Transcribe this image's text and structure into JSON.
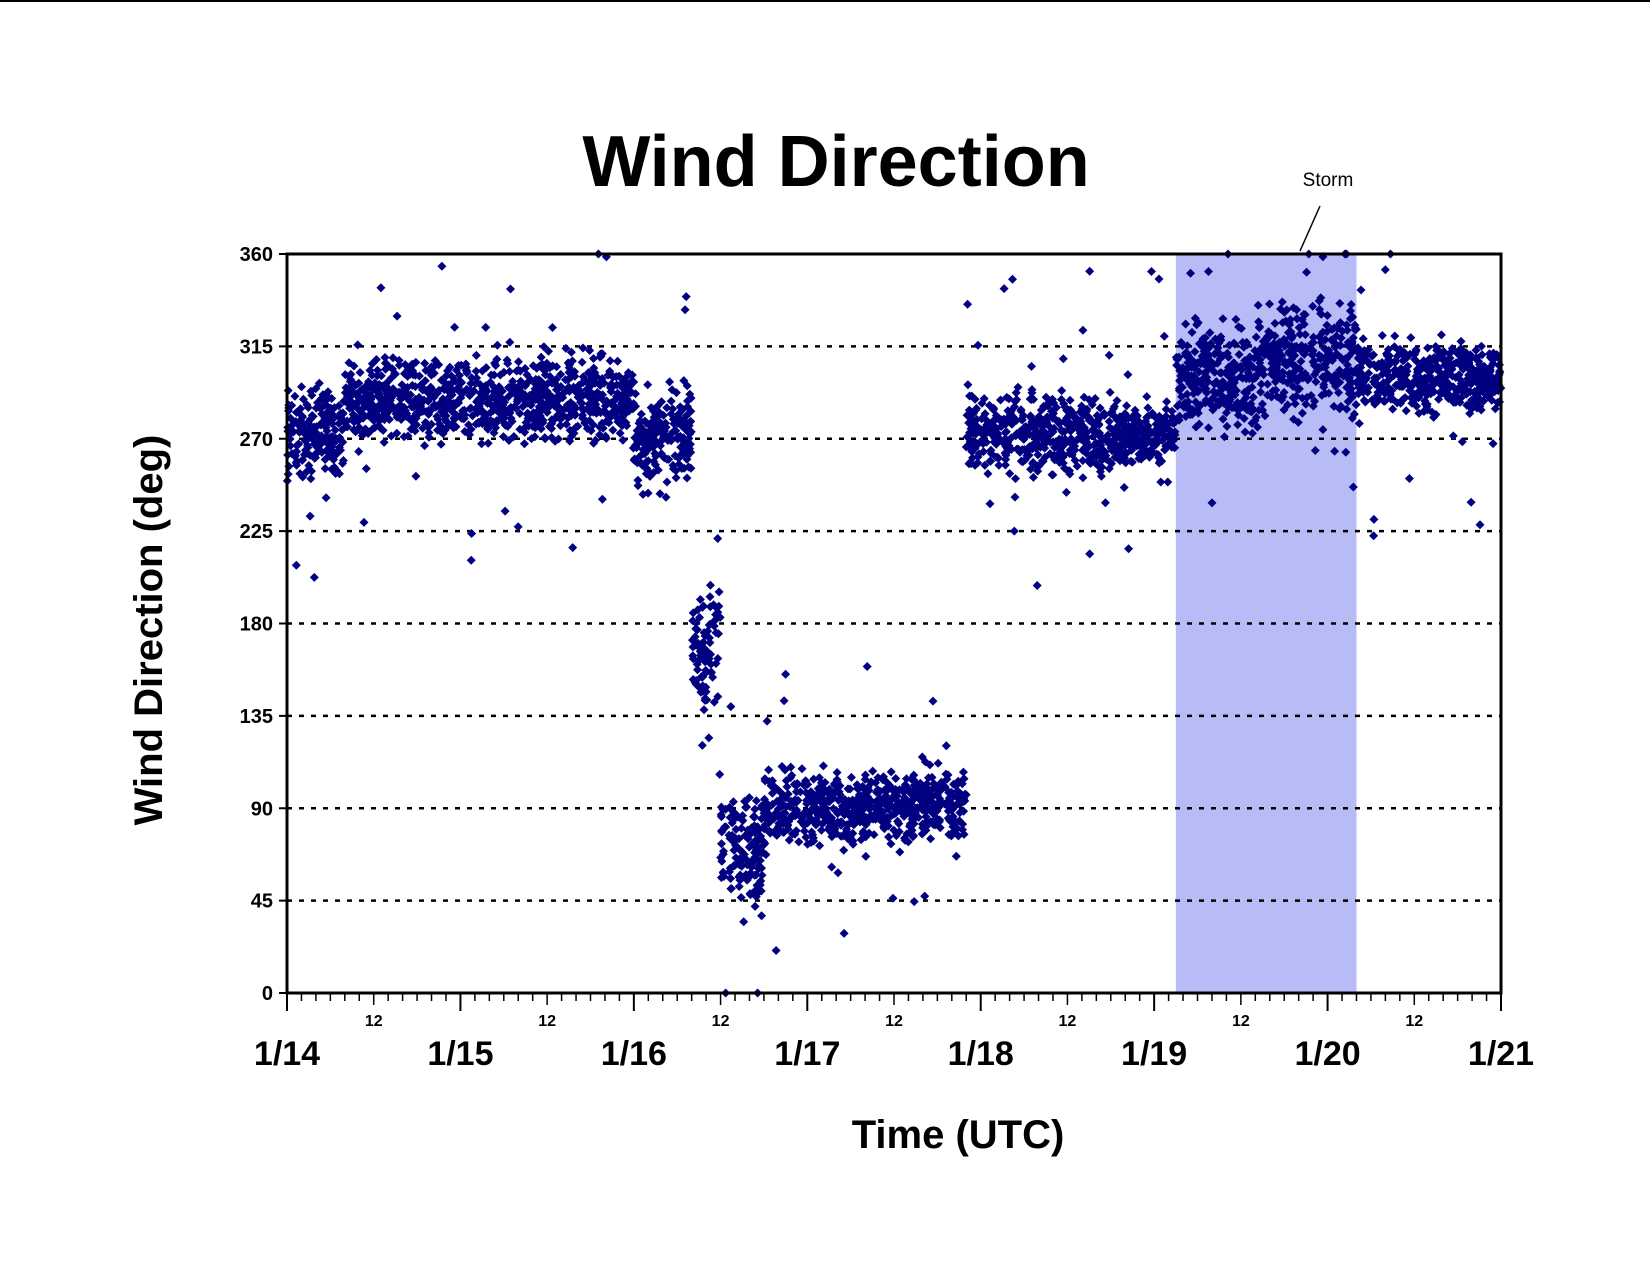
{
  "chart_data": {
    "type": "scatter",
    "title": "Wind Direction",
    "xlabel": "Time (UTC)",
    "ylabel": "Wind Direction (deg)",
    "xlim": [
      "1/14",
      "1/21"
    ],
    "ylim": [
      0,
      360
    ],
    "yticks": [
      "0",
      "45",
      "90",
      "135",
      "180",
      "225",
      "270",
      "315",
      "360"
    ],
    "xmajor_ticks": [
      "1/14",
      "1/15",
      "1/16",
      "1/17",
      "1/18",
      "1/19",
      "1/20",
      "1/21"
    ],
    "xminor_tick_label": "12",
    "grid": "horizontal dotted",
    "marker": "diamond",
    "marker_color": "#000080",
    "highlight": {
      "label": "Storm",
      "start": "1/19 03:00",
      "end": "1/20 04:00",
      "color": "#b8bcf6"
    },
    "series": [
      {
        "description_free": true,
        "points_by_period": [
          {
            "start": "1/14 00:00",
            "end": "1/14 08:00",
            "y_center": 272,
            "y_spread": 28
          },
          {
            "start": "1/14 08:00",
            "end": "1/15 06:00",
            "y_center": 288,
            "y_spread": 28
          },
          {
            "start": "1/15 06:00",
            "end": "1/16 00:00",
            "y_center": 290,
            "y_spread": 30
          },
          {
            "start": "1/16 00:00",
            "end": "1/16 08:00",
            "y_center": 270,
            "y_spread": 35
          },
          {
            "start": "1/16 08:00",
            "end": "1/16 12:00",
            "y_center": 170,
            "y_spread": 40
          },
          {
            "start": "1/16 12:00",
            "end": "1/16 18:00",
            "y_center": 70,
            "y_spread": 45
          },
          {
            "start": "1/16 18:00",
            "end": "1/17 08:00",
            "y_center": 90,
            "y_spread": 25
          },
          {
            "start": "1/17 08:00",
            "end": "1/17 22:00",
            "y_center": 92,
            "y_spread": 25
          },
          {
            "start": "1/17 22:00",
            "end": "1/18 18:00",
            "y_center": 272,
            "y_spread": 28
          },
          {
            "start": "1/18 18:00",
            "end": "1/19 03:00",
            "y_center": 272,
            "y_spread": 20
          },
          {
            "start": "1/19 03:00",
            "end": "1/19 14:00",
            "y_center": 300,
            "y_spread": 40
          },
          {
            "start": "1/19 14:00",
            "end": "1/20 04:00",
            "y_center": 310,
            "y_spread": 40
          },
          {
            "start": "1/20 04:00",
            "end": "1/21 00:00",
            "y_center": 300,
            "y_spread": 25
          }
        ]
      }
    ]
  }
}
